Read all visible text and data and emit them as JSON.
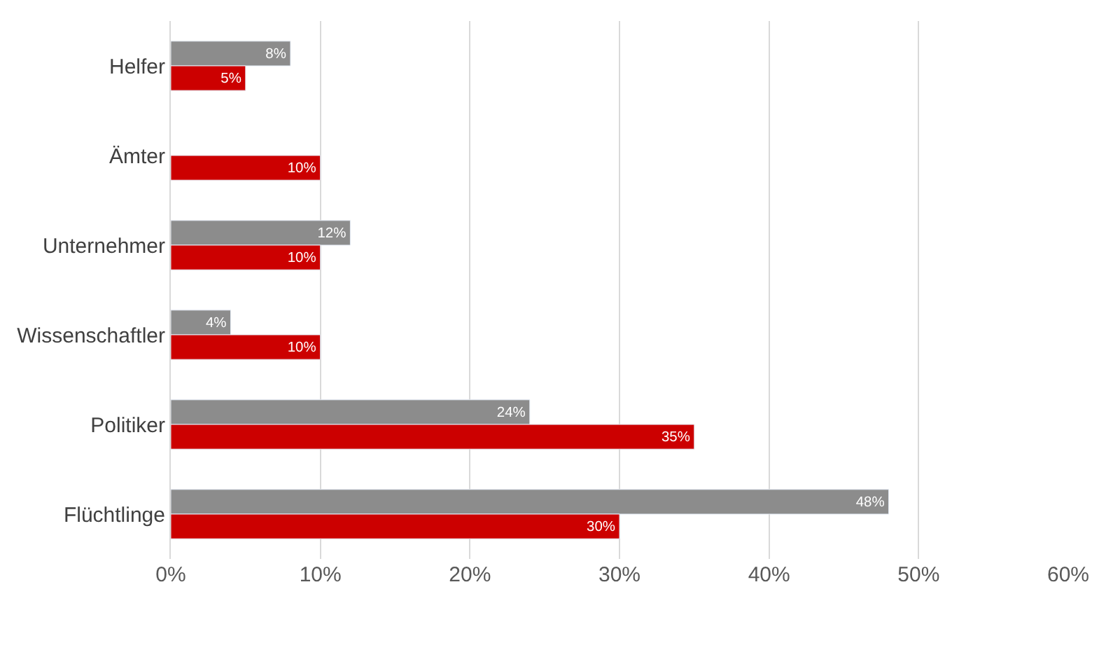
{
  "chart_data": {
    "type": "bar",
    "orientation": "horizontal",
    "categories": [
      "Helfer",
      "Ämter",
      "Unternehmer",
      "Wissenschaftler",
      "Politiker",
      "Flüchtlinge"
    ],
    "series": [
      {
        "color": "#8c8c8c",
        "values": [
          8,
          null,
          12,
          4,
          24,
          48
        ],
        "value_labels": [
          "8%",
          null,
          "12%",
          "4%",
          "24%",
          "48%"
        ]
      },
      {
        "color": "#cc0000",
        "values": [
          5,
          10,
          10,
          10,
          35,
          30
        ],
        "value_labels": [
          "5%",
          "10%",
          "10%",
          "10%",
          "35%",
          "30%"
        ]
      }
    ],
    "xlim": [
      0,
      60
    ],
    "xticks": [
      {
        "value": 0,
        "label": "0%"
      },
      {
        "value": 10,
        "label": "10%"
      },
      {
        "value": 20,
        "label": "20%"
      },
      {
        "value": 30,
        "label": "30%"
      },
      {
        "value": 40,
        "label": "40%"
      },
      {
        "value": 50,
        "label": "50%"
      },
      {
        "value": 60,
        "label": "60%"
      }
    ],
    "grid": "x"
  }
}
